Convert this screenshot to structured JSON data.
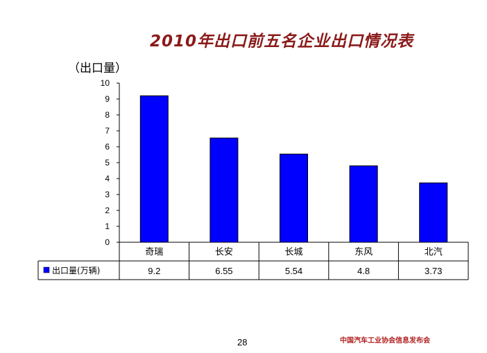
{
  "slide": {
    "title": "2010年出口前五名企业出口情况表",
    "page_number": "28",
    "footer": "中国汽车工业协会信息发布会"
  },
  "chart_data": {
    "type": "bar",
    "title": "2010年出口前五名企业出口情况表",
    "ylabel": "（出口量）",
    "xlabel": "",
    "ylim": [
      0,
      10
    ],
    "yticks": [
      0,
      1,
      2,
      3,
      4,
      5,
      6,
      7,
      8,
      9,
      10
    ],
    "categories": [
      "奇瑞",
      "长安",
      "长城",
      "东风",
      "北汽"
    ],
    "series": [
      {
        "name": "出口量(万辆)",
        "values": [
          9.2,
          6.55,
          5.54,
          4.8,
          3.73
        ],
        "value_labels": [
          "9.2",
          "6.55",
          "5.54",
          "4.8",
          "3.73"
        ],
        "color": "#0000FF"
      }
    ],
    "grid": false,
    "legend": "in-data-table-left"
  }
}
